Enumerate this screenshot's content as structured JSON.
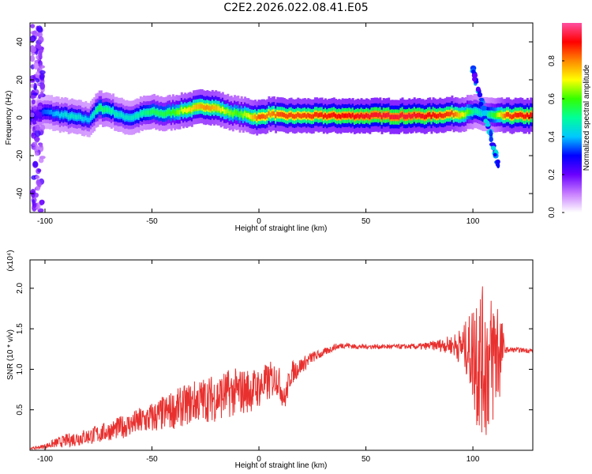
{
  "figure": {
    "title": "C2E2.2026.022.08.41.E05"
  },
  "chart_data": [
    {
      "type": "heatmap",
      "title": "C2E2.2026.022.08.41.E05",
      "xlabel": "Height of straight line (km)",
      "ylabel": "Frequency (Hz)",
      "xlim": [
        -107,
        128
      ],
      "ylim": [
        -50,
        50
      ],
      "xticks": [
        -100,
        -50,
        0,
        50,
        100
      ],
      "yticks": [
        -40,
        -20,
        0,
        20,
        40
      ],
      "colorbar": {
        "label": "Normalized spectral amplitude",
        "range": [
          0,
          1
        ],
        "ticks": [
          "0.0",
          "0.2",
          "0.4",
          "0.6",
          "0.8"
        ],
        "colors": [
          "#ffffff",
          "#c77dff",
          "#6a00ff",
          "#0000ff",
          "#00c8ff",
          "#00ff99",
          "#33ff00",
          "#ffff00",
          "#ff8800",
          "#ff0000",
          "#ff4fa0"
        ]
      },
      "ridge": {
        "x": [
          -105,
          -100,
          -95,
          -90,
          -85,
          -80,
          -75,
          -70,
          -65,
          -60,
          -55,
          -50,
          -45,
          -40,
          -35,
          -30,
          -25,
          -20,
          -15,
          -10,
          -5,
          0,
          5,
          10,
          15,
          20,
          30,
          40,
          50,
          60,
          70,
          80,
          90,
          95,
          100,
          105,
          110,
          115,
          120,
          128
        ],
        "y": [
          1,
          3,
          2,
          1,
          0,
          -1,
          5,
          4,
          1,
          0,
          2,
          3,
          2,
          3,
          4,
          5,
          6,
          5,
          3,
          2,
          1,
          0,
          2,
          1,
          1,
          1,
          1,
          1,
          1,
          1,
          1,
          1,
          2,
          2,
          3,
          2,
          1,
          1,
          1,
          1
        ],
        "amplitude": [
          0.3,
          0.35,
          0.4,
          0.45,
          0.45,
          0.4,
          0.55,
          0.5,
          0.45,
          0.45,
          0.5,
          0.55,
          0.55,
          0.6,
          0.7,
          0.75,
          0.8,
          0.75,
          0.65,
          0.6,
          0.7,
          0.85,
          0.8,
          0.85,
          0.85,
          0.85,
          0.88,
          0.9,
          0.92,
          0.93,
          0.93,
          0.9,
          0.85,
          0.7,
          0.5,
          0.45,
          0.6,
          0.85,
          0.88,
          0.9
        ]
      }
    },
    {
      "type": "line",
      "xlabel": "Height of straight line (km)",
      "ylabel": "SNR (10 * v/v)",
      "multiplier": "(x10⁴)",
      "xlim": [
        -107,
        128
      ],
      "ylim": [
        0,
        2.35
      ],
      "xticks": [
        -100,
        -50,
        0,
        50,
        100
      ],
      "yticks": [
        0.5,
        1.0,
        1.5,
        2.0
      ],
      "color": "#e8312f",
      "series": [
        {
          "x": [
            -107,
            -100,
            -95,
            -90,
            -85,
            -80,
            -75,
            -70,
            -65,
            -60,
            -55,
            -50,
            -45,
            -40,
            -35,
            -30,
            -25,
            -20,
            -15,
            -10,
            -5,
            0,
            5,
            8,
            10,
            12,
            15,
            20,
            25,
            30,
            35,
            40,
            45,
            50,
            55,
            60,
            65,
            70,
            75,
            80,
            85,
            90,
            95,
            98,
            100,
            102,
            104,
            106,
            108,
            110,
            112,
            115,
            120,
            128
          ],
          "y": [
            0.02,
            0.05,
            0.09,
            0.12,
            0.15,
            0.17,
            0.2,
            0.24,
            0.28,
            0.32,
            0.36,
            0.4,
            0.45,
            0.5,
            0.55,
            0.6,
            0.63,
            0.65,
            0.7,
            0.72,
            0.74,
            0.77,
            0.85,
            0.9,
            0.8,
            0.62,
            0.95,
            1.05,
            1.15,
            1.2,
            1.27,
            1.3,
            1.28,
            1.28,
            1.28,
            1.28,
            1.28,
            1.28,
            1.28,
            1.29,
            1.3,
            1.3,
            1.28,
            1.25,
            1.2,
            1.25,
            1.1,
            1.1,
            1.05,
            1.2,
            1.25,
            1.24,
            1.24,
            1.23
          ],
          "spread": [
            0.01,
            0.03,
            0.06,
            0.08,
            0.1,
            0.1,
            0.12,
            0.12,
            0.14,
            0.15,
            0.18,
            0.2,
            0.22,
            0.24,
            0.25,
            0.27,
            0.28,
            0.3,
            0.3,
            0.3,
            0.28,
            0.25,
            0.25,
            0.2,
            0.2,
            0.15,
            0.15,
            0.1,
            0.07,
            0.05,
            0.04,
            0.04,
            0.03,
            0.03,
            0.03,
            0.03,
            0.03,
            0.03,
            0.04,
            0.05,
            0.08,
            0.12,
            0.25,
            0.4,
            0.65,
            1.05,
            0.9,
            1.0,
            0.85,
            0.9,
            0.8,
            0.04,
            0.03,
            0.03
          ]
        }
      ]
    }
  ]
}
